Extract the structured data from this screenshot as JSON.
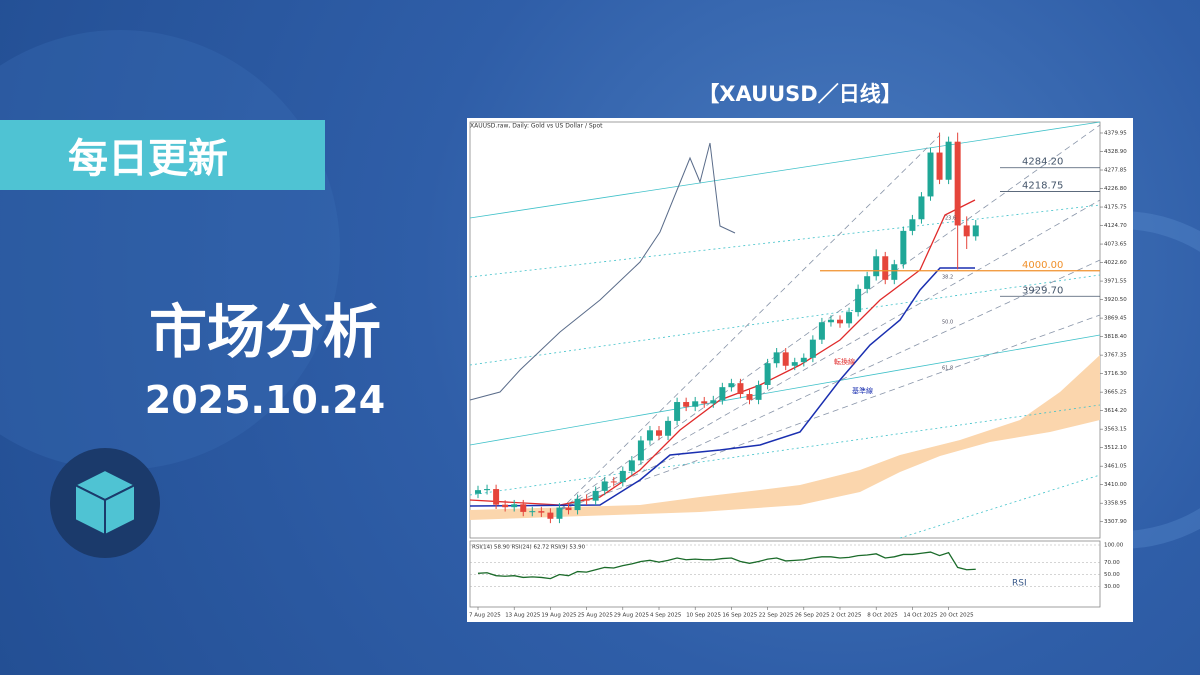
{
  "banner": {
    "tag": "每日更新",
    "title": "市场分析",
    "date": "2025.10.24",
    "chart_heading": "【XAUUSD／日线】"
  },
  "chart_data": {
    "type": "candlestick",
    "title": "XAUUSD.raw, Daily:  Gold vs US Dollar / Spot",
    "categories": [
      "7 Aug 2025",
      null,
      null,
      null,
      "13 Aug 2025",
      null,
      null,
      null,
      "19 Aug 2025",
      null,
      null,
      null,
      "25 Aug 2025",
      null,
      null,
      null,
      "29 Aug 2025",
      null,
      null,
      null,
      "4 Sep 2025",
      null,
      null,
      null,
      "10 Sep 2025",
      null,
      null,
      null,
      "16 Sep 2025",
      null,
      null,
      null,
      "22 Sep 2025",
      null,
      null,
      null,
      "26 Sep 2025",
      null,
      null,
      null,
      "2 Oct 2025",
      null,
      null,
      null,
      "8 Oct 2025",
      null,
      null,
      null,
      "14 Oct 2025",
      null,
      null,
      null,
      "20 Oct 2025",
      null,
      null,
      null
    ],
    "open": [
      3385,
      3395,
      3398,
      3355,
      3348,
      3356,
      3335,
      3337,
      3333,
      3316,
      3347,
      3340,
      3371,
      3366,
      3393,
      3419,
      3417,
      3448,
      3477,
      3532,
      3560,
      3545,
      3586,
      3638,
      3625,
      3640,
      3634,
      3643,
      3679,
      3690,
      3660,
      3644,
      3685,
      3745,
      3775,
      3738,
      3748,
      3760,
      3810,
      3858,
      3865,
      3855,
      3886,
      3950,
      3985,
      4040,
      3975,
      4018,
      4110,
      4142,
      4205,
      4326,
      4251,
      4356,
      4125,
      4095
    ],
    "high": [
      3407,
      3410,
      3410,
      3367,
      3368,
      3368,
      3349,
      3349,
      3345,
      3359,
      3359,
      3383,
      3383,
      3405,
      3431,
      3431,
      3460,
      3489,
      3544,
      3572,
      3572,
      3598,
      3650,
      3650,
      3652,
      3652,
      3655,
      3691,
      3702,
      3702,
      3672,
      3697,
      3757,
      3787,
      3787,
      3760,
      3772,
      3822,
      3870,
      3877,
      3877,
      3898,
      3962,
      3997,
      4059,
      4052,
      4030,
      4122,
      4154,
      4217,
      4340,
      4381,
      4370,
      4381,
      4150,
      4140
    ],
    "low": [
      3373,
      3383,
      3343,
      3336,
      3336,
      3323,
      3323,
      3321,
      3304,
      3304,
      3328,
      3328,
      3354,
      3354,
      3381,
      3405,
      3405,
      3436,
      3465,
      3520,
      3533,
      3533,
      3574,
      3613,
      3613,
      3622,
      3622,
      3631,
      3667,
      3648,
      3632,
      3632,
      3673,
      3733,
      3726,
      3726,
      3736,
      3748,
      3798,
      3846,
      3843,
      3843,
      3874,
      3938,
      3973,
      3963,
      3963,
      4006,
      4098,
      4130,
      4193,
      4239,
      4239,
      4004,
      4060,
      4083
    ],
    "close": [
      3395,
      3398,
      3355,
      3348,
      3356,
      3335,
      3337,
      3333,
      3316,
      3347,
      3340,
      3371,
      3366,
      3393,
      3419,
      3417,
      3448,
      3477,
      3532,
      3560,
      3545,
      3586,
      3638,
      3625,
      3640,
      3634,
      3643,
      3679,
      3690,
      3660,
      3644,
      3685,
      3745,
      3775,
      3738,
      3748,
      3760,
      3810,
      3858,
      3865,
      3855,
      3886,
      3950,
      3985,
      4040,
      3975,
      4018,
      4110,
      4142,
      4205,
      4326,
      4251,
      4356,
      4125,
      4095,
      4125
    ],
    "up_color": "#1fa797",
    "down_color": "#e5453b",
    "ylim": [
      3263,
      4402
    ],
    "yticks": [
      4379.95,
      {
        "value": 4328.9,
        "label": "4328.90"
      },
      4277.85,
      {
        "value": 4226.8,
        "label": "4226.80"
      },
      4175.75,
      {
        "value": 4124.7,
        "label": "4124.70"
      },
      4073.65,
      {
        "value": 4022.6,
        "label": "4022.60"
      },
      3971.55,
      {
        "value": 3920.5,
        "label": "3920.50"
      },
      3869.45,
      {
        "value": 3818.4,
        "label": "3818.40"
      },
      3767.35,
      {
        "value": 3716.3,
        "label": "3716.30"
      },
      3665.25,
      {
        "value": 3614.2,
        "label": "3614.20"
      },
      3563.15,
      {
        "value": 3512.1,
        "label": "3512.10"
      },
      3461.05,
      {
        "value": 3410,
        "label": "3410.00"
      },
      3358.95,
      {
        "value": 3307.9,
        "label": "3307.90"
      }
    ],
    "levels": [
      {
        "value": 4284.2,
        "label": "4284.20",
        "color": "#44556a"
      },
      {
        "value": 4218.75,
        "label": "4218.75",
        "color": "#44556a"
      },
      {
        "value": 4000,
        "label": "4000.00",
        "color": "#f0902b"
      },
      {
        "value": 3929.7,
        "label": "3929.70",
        "color": "#44556a"
      }
    ],
    "fib_labels": [
      "23.6",
      "38.2",
      "50.0",
      "61.8"
    ],
    "line_labels": [
      "転換線",
      "基準線"
    ],
    "rsi": {
      "legend": "RSI(14) 58.90 RSI(24) 62.72 RSI(9) 53.90",
      "label": "RSI",
      "color": "#1b6b2a",
      "values": [
        52,
        53,
        48,
        47,
        48,
        45,
        46,
        45,
        43,
        50,
        48,
        55,
        54,
        58,
        62,
        61,
        65,
        68,
        72,
        74,
        71,
        74,
        78,
        75,
        76,
        75,
        75,
        77,
        78,
        72,
        69,
        72,
        76,
        78,
        73,
        74,
        75,
        78,
        80,
        80,
        78,
        79,
        82,
        83,
        85,
        78,
        80,
        84,
        84,
        86,
        88,
        82,
        87,
        62,
        58,
        58.9
      ],
      "ylim": [
        0,
        100
      ],
      "yticks": [
        {
          "value": 100,
          "label": "100.00"
        },
        {
          "value": 70,
          "label": "70.00"
        },
        {
          "value": 50,
          "label": "50.00"
        },
        {
          "value": 30,
          "label": "30.00"
        }
      ]
    }
  }
}
